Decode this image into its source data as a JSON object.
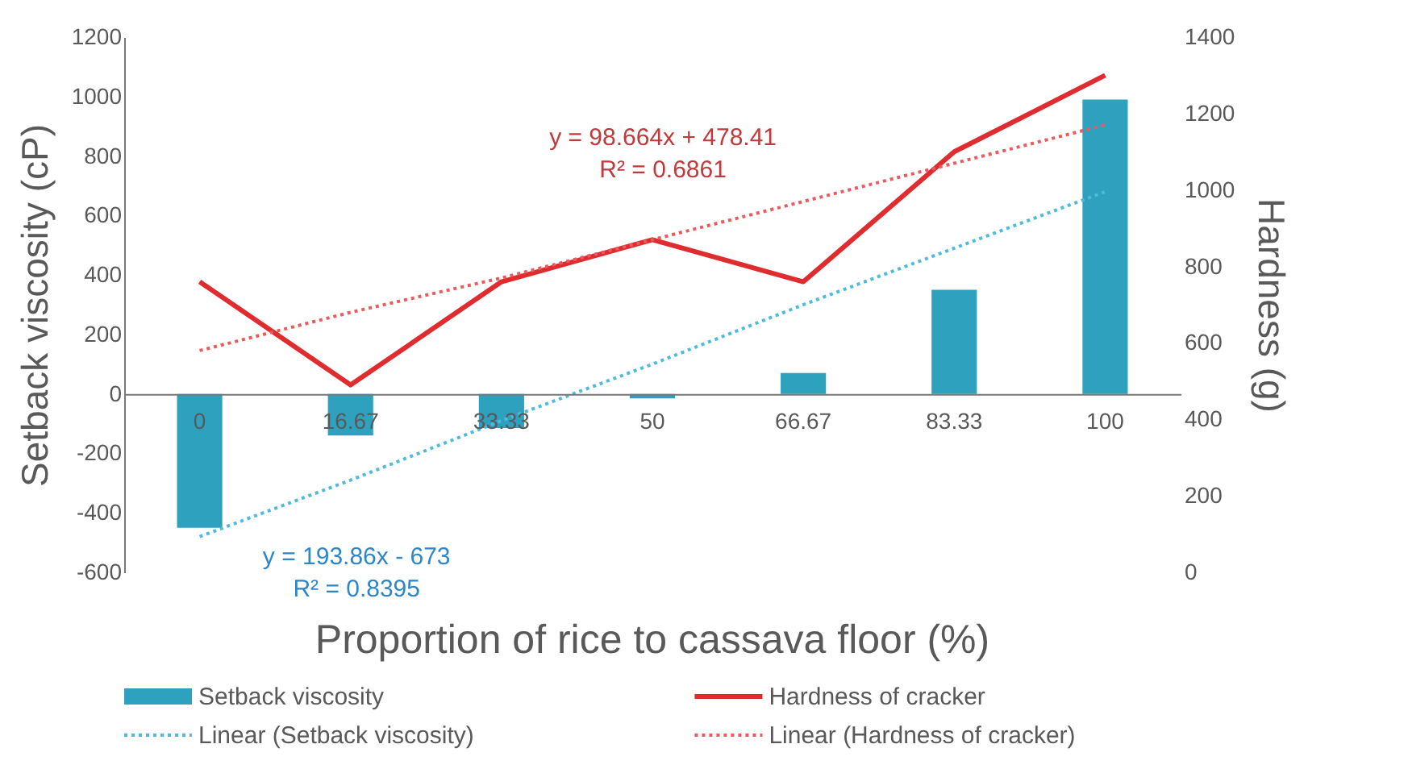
{
  "chart_data": {
    "type": "bar",
    "xlabel": "Proportion of rice to cassava floor (%)",
    "ylabel": "Setback viscosity (cP)",
    "y2label": "Hardness (g)",
    "categories": [
      "0",
      "16.67",
      "33.33",
      "50",
      "66.67",
      "83.33",
      "100"
    ],
    "series": [
      {
        "name": "Setback viscosity",
        "color": "#2ea1bf",
        "values": [
          -450,
          -140,
          -115,
          -15,
          70,
          350,
          990
        ]
      },
      {
        "name": "Hardness of cracker",
        "type": "line",
        "axis": "y2",
        "color": "#e02b2f",
        "line_style": "solid",
        "values": [
          760,
          490,
          760,
          870,
          760,
          1100,
          1300
        ]
      },
      {
        "name": "Linear (Setback viscosity)",
        "type": "line",
        "color": "#4dbbdb",
        "line_style": "dotted",
        "values": [
          -480,
          -290,
          -90,
          100,
          300,
          490,
          680
        ]
      },
      {
        "name": "Linear (Hardness of cracker)",
        "type": "line",
        "axis": "y2",
        "color": "#ec5a5e",
        "line_style": "dotted",
        "values": [
          580,
          680,
          770,
          870,
          970,
          1070,
          1170
        ]
      }
    ],
    "annotations": [
      "y = 98.664x + 478.41",
      "R² = 0.6861",
      "y = 193.86x - 673",
      "R² = 0.8395"
    ],
    "ylim": [
      -600,
      1200
    ],
    "yticks": [
      -600,
      -400,
      -200,
      0,
      200,
      400,
      600,
      800,
      1000,
      1200
    ],
    "y2lim": [
      0,
      1400
    ],
    "y2ticks": [
      0,
      200,
      400,
      600,
      800,
      1000,
      1200,
      1400
    ],
    "grid": false,
    "legend": "bottom"
  }
}
